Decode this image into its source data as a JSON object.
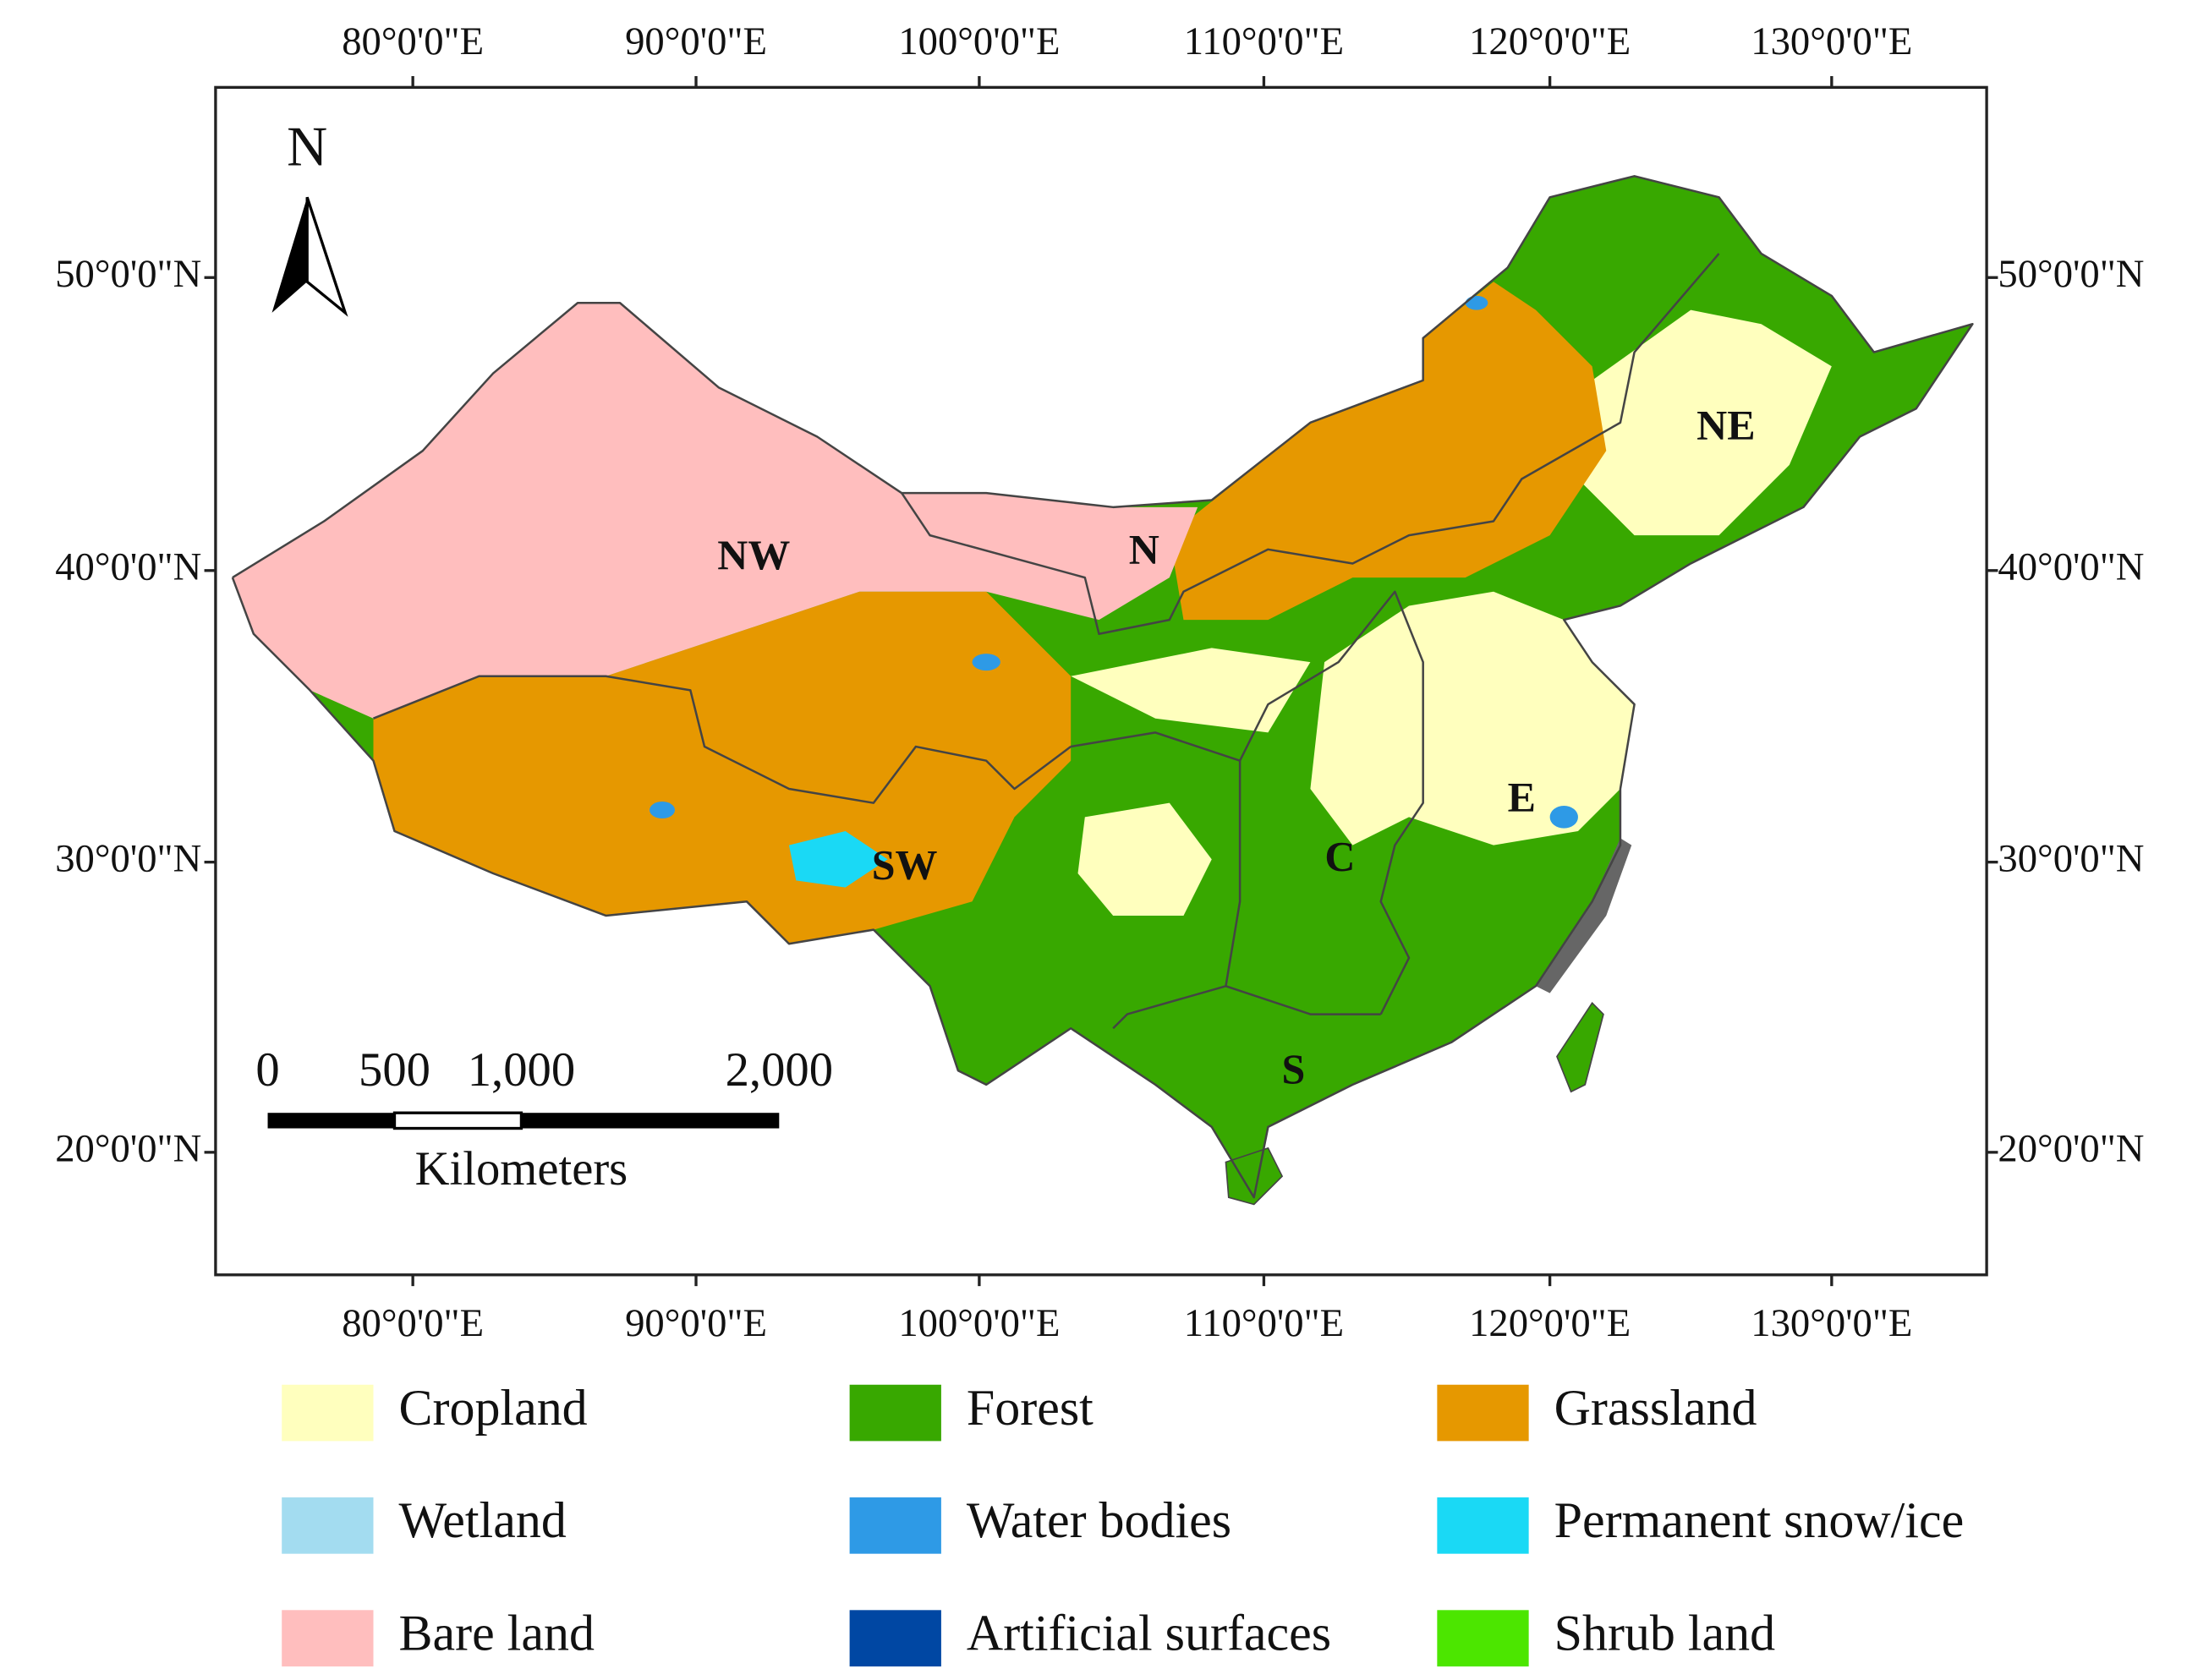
{
  "map": {
    "lon_labels": [
      "80°0'0\"E",
      "90°0'0\"E",
      "100°0'0\"E",
      "110°0'0\"E",
      "120°0'0\"E",
      "130°0'0\"E"
    ],
    "lat_labels": [
      "50°0'0\"N",
      "40°0'0\"N",
      "30°0'0\"N",
      "20°0'0\"N"
    ],
    "north_label": "N",
    "scale_bar": {
      "ticks": [
        "0",
        "500",
        "1,000",
        "2,000"
      ],
      "unit": "Kilometers"
    },
    "regions": [
      "NW",
      "N",
      "NE",
      "SW",
      "C",
      "E",
      "S"
    ],
    "legend": [
      {
        "label": "Cropland",
        "color": "#ffffbe"
      },
      {
        "label": "Forest",
        "color": "#38a800"
      },
      {
        "label": "Grassland",
        "color": "#e69800"
      },
      {
        "label": "Wetland",
        "color": "#a3dcf0"
      },
      {
        "label": "Water bodies",
        "color": "#2e9ae6"
      },
      {
        "label": "Permanent snow/ice",
        "color": "#1ad9f5"
      },
      {
        "label": "Bare land",
        "color": "#ffbebe"
      },
      {
        "label": "Artificial surfaces",
        "color": "#0047a3"
      },
      {
        "label": "Shrub land",
        "color": "#4ce600"
      }
    ]
  }
}
